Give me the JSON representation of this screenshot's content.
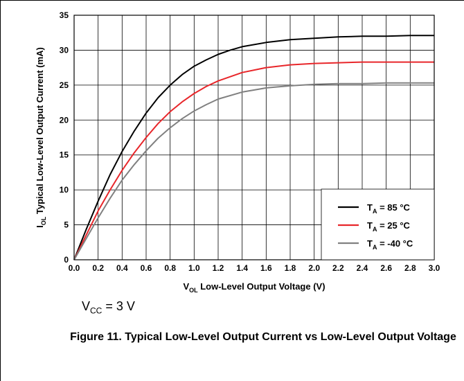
{
  "chart_data": {
    "type": "line",
    "xlabel_main": "V",
    "xlabel_sub": "OL",
    "xlabel_rest": " Low-Level Output Voltage (V)",
    "ylabel_main": "I",
    "ylabel_sub": "OL",
    "ylabel_rest": " Typical Low-Level Output Current (mA)",
    "xlim": [
      0,
      3.0
    ],
    "ylim": [
      0,
      35
    ],
    "xticks": [
      "0.0",
      "0.2",
      "0.4",
      "0.6",
      "0.8",
      "1.0",
      "1.2",
      "1.4",
      "1.6",
      "1.8",
      "2.0",
      "2.2",
      "2.4",
      "2.6",
      "2.8",
      "3.0"
    ],
    "yticks": [
      "0",
      "5",
      "10",
      "15",
      "20",
      "25",
      "30",
      "35"
    ],
    "grid": true,
    "legend_position": "bottom-right",
    "series": [
      {
        "name": "T_A = 85 °C",
        "legend_t": "T",
        "legend_sub": "A",
        "legend_rest": " = 85 °C",
        "color": "#000000",
        "x": [
          0,
          0.1,
          0.2,
          0.3,
          0.4,
          0.5,
          0.6,
          0.7,
          0.8,
          0.9,
          1.0,
          1.1,
          1.2,
          1.3,
          1.4,
          1.6,
          1.8,
          2.0,
          2.2,
          2.4,
          2.6,
          2.8,
          3.0
        ],
        "y": [
          0,
          4.3,
          8.4,
          12.2,
          15.5,
          18.4,
          21.0,
          23.2,
          25.0,
          26.5,
          27.7,
          28.6,
          29.4,
          30.0,
          30.5,
          31.1,
          31.5,
          31.7,
          31.9,
          32.0,
          32.0,
          32.1,
          32.1
        ]
      },
      {
        "name": "T_A = 25 °C",
        "legend_t": "T",
        "legend_sub": "A",
        "legend_rest": " = 25 °C",
        "color": "#e8262a",
        "x": [
          0,
          0.1,
          0.2,
          0.3,
          0.4,
          0.5,
          0.6,
          0.7,
          0.8,
          0.9,
          1.0,
          1.1,
          1.2,
          1.4,
          1.6,
          1.8,
          2.0,
          2.2,
          2.4,
          2.6,
          2.8,
          3.0
        ],
        "y": [
          0,
          3.5,
          7.0,
          10.0,
          12.8,
          15.3,
          17.5,
          19.5,
          21.2,
          22.6,
          23.8,
          24.8,
          25.6,
          26.8,
          27.5,
          27.9,
          28.1,
          28.2,
          28.3,
          28.3,
          28.3,
          28.3
        ]
      },
      {
        "name": "T_A = -40 °C",
        "legend_t": "T",
        "legend_sub": "A",
        "legend_rest": " = -40 °C",
        "color": "#808080",
        "x": [
          0,
          0.1,
          0.2,
          0.3,
          0.4,
          0.5,
          0.6,
          0.7,
          0.8,
          0.9,
          1.0,
          1.1,
          1.2,
          1.4,
          1.6,
          1.8,
          2.0,
          2.2,
          2.4,
          2.6,
          2.8,
          3.0
        ],
        "y": [
          0,
          3.0,
          6.0,
          8.8,
          11.4,
          13.6,
          15.6,
          17.4,
          18.9,
          20.2,
          21.3,
          22.2,
          23.0,
          24.0,
          24.6,
          24.9,
          25.1,
          25.2,
          25.2,
          25.3,
          25.3,
          25.3
        ]
      }
    ]
  },
  "vcc": {
    "main": "V",
    "sub": "CC",
    "rest": " = 3 V"
  },
  "caption": "Figure 11. Typical Low-Level Output Current vs Low-Level Output Voltage"
}
